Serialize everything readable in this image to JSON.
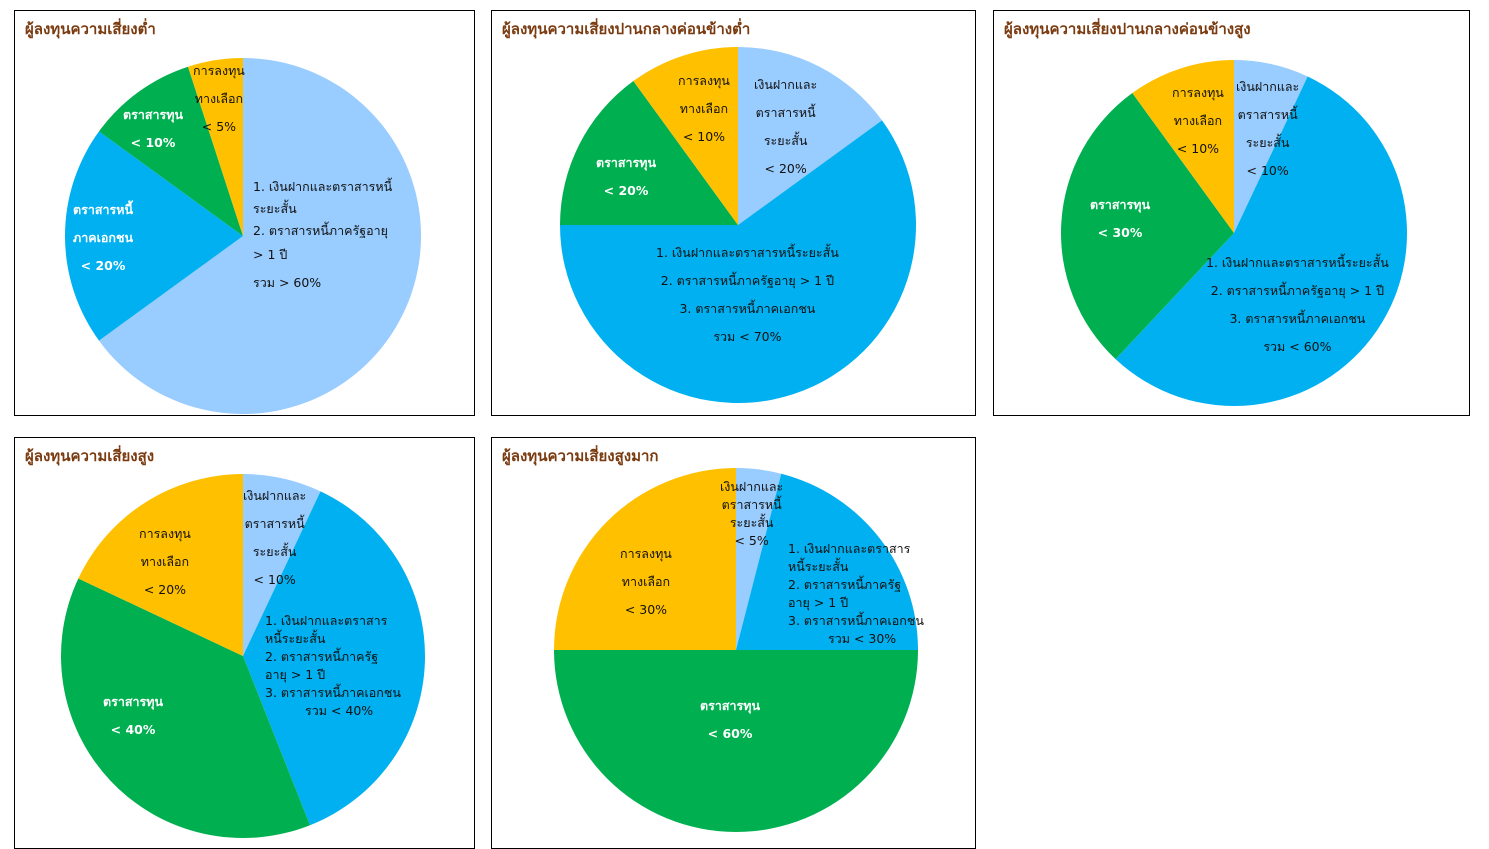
{
  "colors": {
    "light_blue": "#99ccff",
    "blue": "#00b0f0",
    "green": "#00b050",
    "gold": "#ffc000"
  },
  "chart_data": [
    {
      "type": "pie",
      "title": "ผู้ลงทุนความเสี่ยงต่ำ",
      "slices": [
        {
          "name": "เงินฝากและตราสารหนี้ระยะสั้น + ตราสารหนี้ภาครัฐอายุ > 1 ปี",
          "value": 65,
          "color": "#99ccff"
        },
        {
          "name": "ตราสารหนี้ภาคเอกชน",
          "value": 20,
          "color": "#00b0f0"
        },
        {
          "name": "ตราสารทุน",
          "value": 10,
          "color": "#00b050"
        },
        {
          "name": "การลงทุนทางเลือก",
          "value": 5,
          "color": "#ffc000"
        }
      ],
      "labels": [
        [
          "1. เงินฝากและตราสารหนี้",
          "ระยะสั้น",
          "2. ตราสารหนี้ภาครัฐอายุ",
          "> 1 ปี",
          "รวม > 60%"
        ],
        [
          "ตราสารหนี้",
          "ภาคเอกชน",
          "< 20%"
        ],
        [
          "ตราสารทุน",
          "< 10%"
        ],
        [
          "การลงทุน",
          "ทางเลือก",
          "< 5%"
        ]
      ]
    },
    {
      "type": "pie",
      "title": "ผู้ลงทุนความเสี่ยงปานกลางค่อนข้างต่ำ",
      "slices": [
        {
          "name": "เงินฝากและตราสารหนี้ระยะสั้น",
          "value": 15,
          "color": "#99ccff"
        },
        {
          "name": "ตราสารหนี้รวม",
          "value": 60,
          "color": "#00b0f0"
        },
        {
          "name": "ตราสารทุน",
          "value": 15,
          "color": "#00b050"
        },
        {
          "name": "การลงทุนทางเลือก",
          "value": 10,
          "color": "#ffc000"
        }
      ],
      "labels": [
        [
          "เงินฝากและ",
          "ตราสารหนี้",
          "ระยะสั้น",
          "< 20%"
        ],
        [
          "1. เงินฝากและตราสารหนี้ระยะสั้น",
          "2. ตราสารหนี้ภาครัฐอายุ > 1 ปี",
          "3. ตราสารหนี้ภาคเอกชน",
          "รวม < 70%"
        ],
        [
          "ตราสารทุน",
          "< 20%"
        ],
        [
          "การลงทุน",
          "ทางเลือก",
          "< 10%"
        ]
      ]
    },
    {
      "type": "pie",
      "title": "ผู้ลงทุนความเสี่ยงปานกลางค่อนข้างสูง",
      "slices": [
        {
          "name": "เงินฝากและตราสารหนี้ระยะสั้น",
          "value": 7,
          "color": "#99ccff"
        },
        {
          "name": "ตราสารหนี้รวม",
          "value": 55,
          "color": "#00b0f0"
        },
        {
          "name": "ตราสารทุน",
          "value": 28,
          "color": "#00b050"
        },
        {
          "name": "การลงทุนทางเลือก",
          "value": 10,
          "color": "#ffc000"
        }
      ],
      "labels": [
        [
          "เงินฝากและ",
          "ตราสารหนี้",
          "ระยะสั้น",
          "< 10%"
        ],
        [
          "1. เงินฝากและตราสารหนี้ระยะสั้น",
          "2. ตราสารหนี้ภาครัฐอายุ > 1 ปี",
          "3. ตราสารหนี้ภาคเอกชน",
          "รวม < 60%"
        ],
        [
          "ตราสารทุน",
          "< 30%"
        ],
        [
          "การลงทุน",
          "ทางเลือก",
          "< 10%"
        ]
      ]
    },
    {
      "type": "pie",
      "title": "ผู้ลงทุนความเสี่ยงสูง",
      "slices": [
        {
          "name": "เงินฝากและตราสารหนี้ระยะสั้น",
          "value": 7,
          "color": "#99ccff"
        },
        {
          "name": "ตราสารหนี้รวม",
          "value": 37,
          "color": "#00b0f0"
        },
        {
          "name": "ตราสารทุน",
          "value": 38,
          "color": "#00b050"
        },
        {
          "name": "การลงทุนทางเลือก",
          "value": 18,
          "color": "#ffc000"
        }
      ],
      "labels": [
        [
          "เงินฝากและ",
          "ตราสารหนี้",
          "ระยะสั้น",
          "< 10%"
        ],
        [
          "1. เงินฝากและตราสาร",
          "หนี้ระยะสั้น",
          "2. ตราสารหนี้ภาครัฐ",
          "อายุ > 1 ปี",
          "3. ตราสารหนี้ภาคเอกชน",
          "รวม < 40%"
        ],
        [
          "ตราสารทุน",
          "< 40%"
        ],
        [
          "การลงทุน",
          "ทางเลือก",
          "< 20%"
        ]
      ]
    },
    {
      "type": "pie",
      "title": "ผู้ลงทุนความเสี่ยงสูงมาก",
      "slices": [
        {
          "name": "เงินฝากและตราสารหนี้ระยะสั้น",
          "value": 4,
          "color": "#99ccff"
        },
        {
          "name": "ตราสารหนี้รวม",
          "value": 21,
          "color": "#00b0f0"
        },
        {
          "name": "ตราสารทุน",
          "value": 50,
          "color": "#00b050"
        },
        {
          "name": "การลงทุนทางเลือก",
          "value": 25,
          "color": "#ffc000"
        }
      ],
      "labels": [
        [
          "เงินฝากและ",
          "ตราสารหนี้",
          "ระยะสั้น",
          "< 5%"
        ],
        [
          "1. เงินฝากและตราสาร",
          "หนี้ระยะสั้น",
          "2. ตราสารหนี้ภาครัฐ",
          "อายุ > 1 ปี",
          "3. ตราสารหนี้ภาคเอกชน",
          "รวม < 30%"
        ],
        [
          "ตราสารทุน",
          "< 60%"
        ],
        [
          "การลงทุน",
          "ทางเลือก",
          "< 30%"
        ]
      ]
    }
  ]
}
